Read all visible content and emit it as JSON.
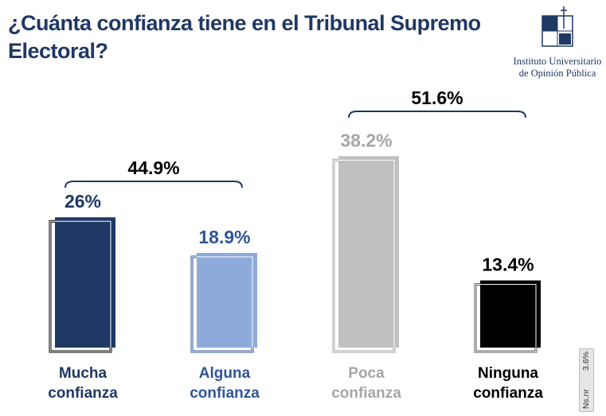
{
  "title": "¿Cuánta confianza tiene en el Tribunal Supremo Electoral?",
  "logo": {
    "line1": "Instituto Universitario",
    "line2": "de Opinión Pública",
    "mark": "UCA"
  },
  "nsnr": {
    "label": "Ns.nr",
    "value": "3.6%"
  },
  "chart_data": {
    "type": "bar",
    "title": "¿Cuánta confianza tiene en el Tribunal Supremo Electoral?",
    "categories": [
      "Mucha confianza",
      "Alguna confianza",
      "Poca confianza",
      "Ninguna confianza"
    ],
    "values": [
      26,
      18.9,
      38.2,
      13.4
    ],
    "labels": [
      "26%",
      "18.9%",
      "38.2%",
      "13.4%"
    ],
    "colors": [
      "#1f3864",
      "#8eaadb",
      "#bfbfbf",
      "#000000"
    ],
    "label_colors": [
      "#1f3864",
      "#2f5597",
      "#a6a6a6",
      "#000000"
    ],
    "groups": [
      {
        "label": "44.9%",
        "categories": [
          0,
          1
        ]
      },
      {
        "label": "51.6%",
        "categories": [
          2,
          3
        ]
      }
    ]
  }
}
